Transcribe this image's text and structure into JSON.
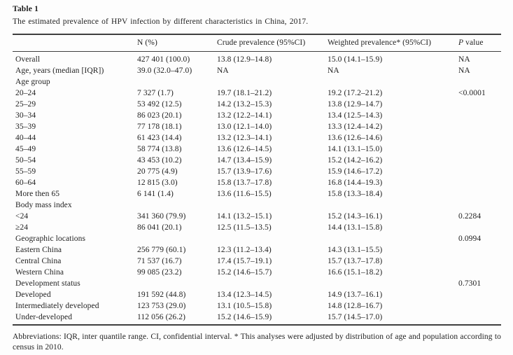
{
  "table": {
    "label": "Table 1",
    "caption": "The estimated prevalence of HPV infection by different characteristics in China, 2017.",
    "columns": {
      "stub": "",
      "n": "N (%)",
      "crude": "Crude prevalence (95%CI)",
      "weighted": "Weighted prevalence* (95%CI)",
      "p_letter": "P",
      "p_rest": "value"
    },
    "rows": [
      {
        "label": "Overall",
        "n": "427 401 (100.0)",
        "crude": "13.8 (12.9–14.8)",
        "weighted": "15.0 (14.1–15.9)",
        "p": "NA"
      },
      {
        "label": "Age, years (median [IQR])",
        "n": "39.0 (32.0–47.0)",
        "crude": "NA",
        "weighted": "NA",
        "p": "NA"
      },
      {
        "label": "Age group",
        "n": "",
        "crude": "",
        "weighted": "",
        "p": ""
      },
      {
        "label": "20–24",
        "n": "7 327 (1.7)",
        "crude": "19.7 (18.1–21.2)",
        "weighted": "19.2 (17.2–21.2)",
        "p": "<0.0001"
      },
      {
        "label": "25–29",
        "n": "53 492 (12.5)",
        "crude": "14.2 (13.2–15.3)",
        "weighted": "13.8 (12.9–14.7)",
        "p": ""
      },
      {
        "label": "30–34",
        "n": "86 023 (20.1)",
        "crude": "13.2 (12.2–14.1)",
        "weighted": "13.4 (12.5–14.3)",
        "p": ""
      },
      {
        "label": "35–39",
        "n": "77 178 (18.1)",
        "crude": "13.0 (12.1–14.0)",
        "weighted": "13.3 (12.4–14.2)",
        "p": ""
      },
      {
        "label": "40–44",
        "n": "61 423 (14.4)",
        "crude": "13.2 (12.3–14.1)",
        "weighted": "13.6 (12.6–14.6)",
        "p": ""
      },
      {
        "label": "45–49",
        "n": "58 774 (13.8)",
        "crude": "13.6 (12.6–14.5)",
        "weighted": "14.1 (13.1–15.0)",
        "p": ""
      },
      {
        "label": "50–54",
        "n": "43 453 (10.2)",
        "crude": "14.7 (13.4–15.9)",
        "weighted": "15.2 (14.2–16.2)",
        "p": ""
      },
      {
        "label": "55–59",
        "n": "20 775 (4.9)",
        "crude": "15.7 (13.9–17.6)",
        "weighted": "15.9 (14.6–17.2)",
        "p": ""
      },
      {
        "label": "60–64",
        "n": "12 815 (3.0)",
        "crude": "15.8 (13.7–17.8)",
        "weighted": "16.8 (14.4–19.3)",
        "p": ""
      },
      {
        "label": "More then 65",
        "n": "6 141 (1.4)",
        "crude": "13.6 (11.6–15.5)",
        "weighted": "15.8 (13.3–18.4)",
        "p": ""
      },
      {
        "label": "Body mass index",
        "n": "",
        "crude": "",
        "weighted": "",
        "p": ""
      },
      {
        "label": "<24",
        "n": "341 360 (79.9)",
        "crude": "14.1 (13.2–15.1)",
        "weighted": "15.2 (14.3–16.1)",
        "p": "0.2284"
      },
      {
        "label": "≥24",
        "n": "86 041 (20.1)",
        "crude": "12.5 (11.5–13.5)",
        "weighted": "14.4 (13.1–15.8)",
        "p": ""
      },
      {
        "label": "Geographic locations",
        "n": "",
        "crude": "",
        "weighted": "",
        "p": "0.0994"
      },
      {
        "label": "Eastern China",
        "n": "256 779 (60.1)",
        "crude": "12.3 (11.2–13.4)",
        "weighted": "14.3 (13.1–15.5)",
        "p": ""
      },
      {
        "label": "Central China",
        "n": "71 537 (16.7)",
        "crude": "17.4 (15.7–19.1)",
        "weighted": "15.7 (13.7–17.8)",
        "p": ""
      },
      {
        "label": "Western China",
        "n": "99 085 (23.2)",
        "crude": "15.2 (14.6–15.7)",
        "weighted": "16.6 (15.1–18.2)",
        "p": ""
      },
      {
        "label": "Development status",
        "n": "",
        "crude": "",
        "weighted": "",
        "p": "0.7301"
      },
      {
        "label": "Developed",
        "n": "191 592 (44.8)",
        "crude": "13.4 (12.3–14.5)",
        "weighted": "14.9 (13.7–16.1)",
        "p": ""
      },
      {
        "label": "Intermediately developed",
        "n": "123 753 (29.0)",
        "crude": "13.1 (10.5–15.8)",
        "weighted": "14.8 (12.8–16.7)",
        "p": ""
      },
      {
        "label": "Under-developed",
        "n": "112 056 (26.2)",
        "crude": "15.2 (14.6–15.9)",
        "weighted": "15.7 (14.5–17.0)",
        "p": ""
      }
    ],
    "footnote": "Abbreviations: IQR, inter quantile range. CI, confidential interval. * This analyses were adjusted by distribution of age and population according to census in 2010."
  }
}
